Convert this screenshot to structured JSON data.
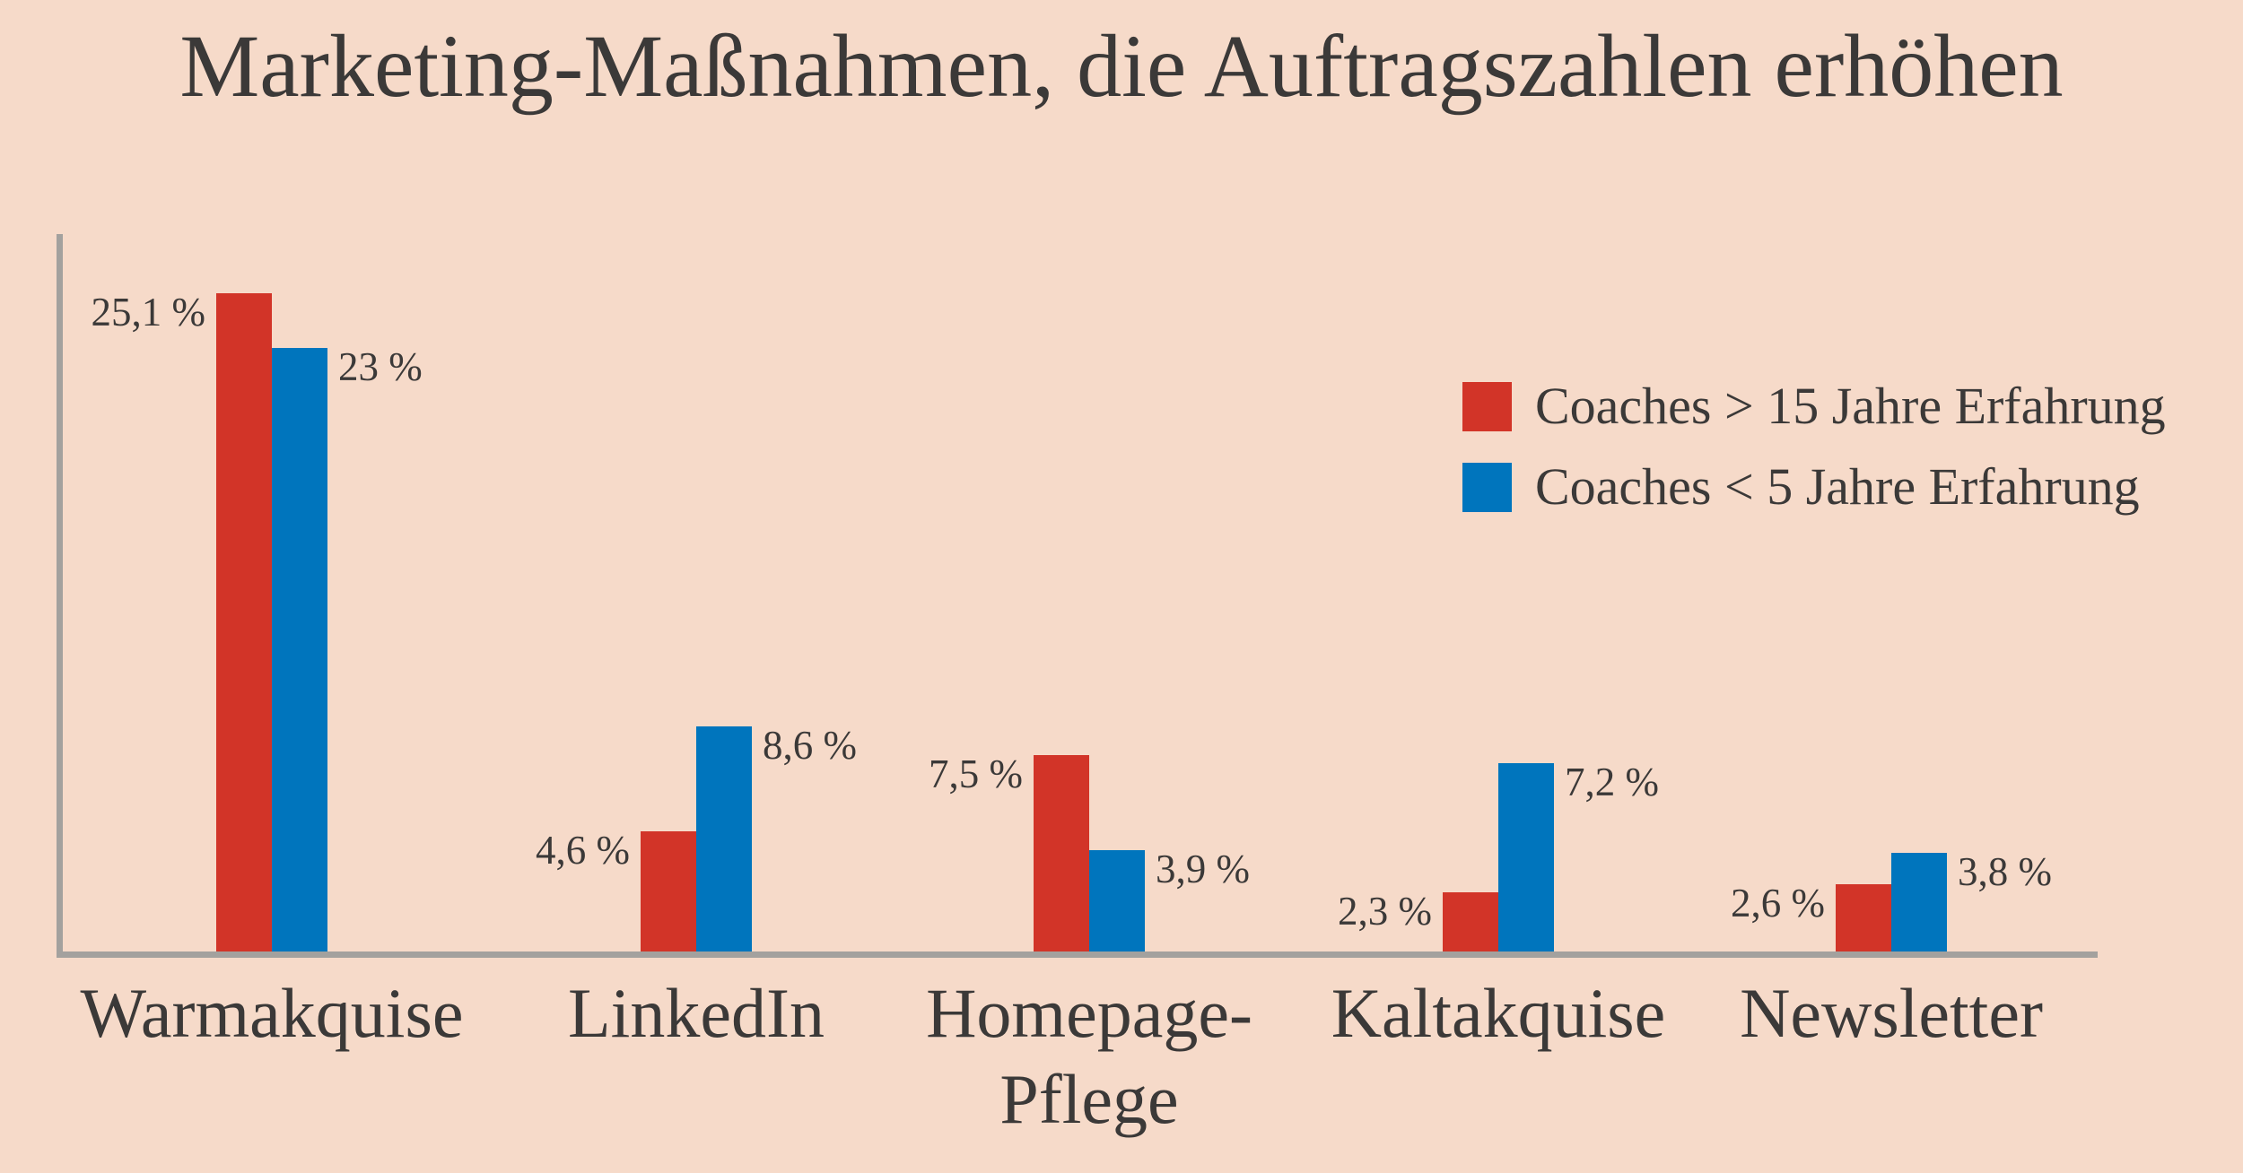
{
  "title": "Marketing-Maßnahmen, die Auftragszahlen erhöhen",
  "colors": {
    "background": "#f6dac9",
    "series_red": "#d23428",
    "series_blue": "#0075bd",
    "text": "#3b3938",
    "axis": "#a3a19e"
  },
  "chart_data": {
    "type": "bar",
    "title": "Marketing-Maßnahmen, die Auftragszahlen erhöhen",
    "categories": [
      "Warmakquise",
      "LinkedIn",
      "Homepage-Pflege",
      "Kaltakquise",
      "Newsletter"
    ],
    "tick_labels": [
      [
        "Warmakquise"
      ],
      [
        "LinkedIn"
      ],
      [
        "Homepage-",
        "Pflege"
      ],
      [
        "Kaltakquise"
      ],
      [
        "Newsletter"
      ]
    ],
    "series": [
      {
        "name": "Coaches > 15 Jahre Erfahrung",
        "color": "#d23428",
        "values": [
          25.1,
          4.6,
          7.5,
          2.3,
          2.6
        ],
        "value_labels": [
          "25,1 %",
          "4,6 %",
          "7,5 %",
          "2,3 %",
          "2,6 %"
        ]
      },
      {
        "name": "Coaches < 5 Jahre Erfahrung",
        "color": "#0075bd",
        "values": [
          23,
          8.6,
          3.9,
          7.2,
          3.8
        ],
        "value_labels": [
          "23 %",
          "8,6 %",
          "3,9 %",
          "7,2 %",
          "3,8 %"
        ]
      }
    ],
    "xlabel": "",
    "ylabel": "",
    "ylim": [
      0,
      27.4
    ],
    "grid": false,
    "legend_position": "upper-right",
    "value_suffix": "%",
    "decimal_separator": ","
  }
}
